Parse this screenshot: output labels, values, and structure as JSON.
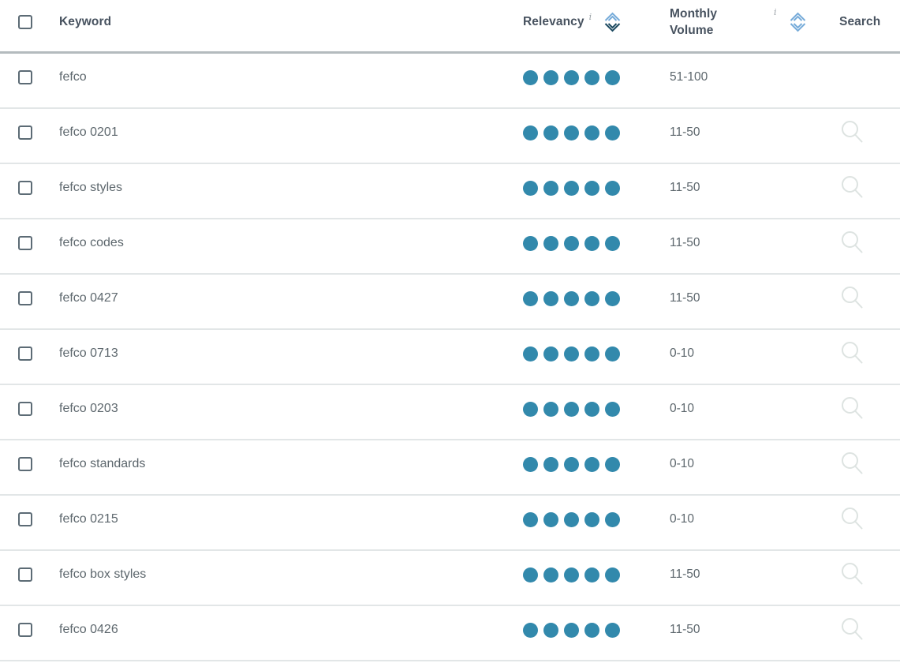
{
  "header": {
    "keyword": "Keyword",
    "relevancy": "Relevancy",
    "monthly_volume": "Monthly Volume",
    "search": "Search",
    "info_marker": "i",
    "select_all_checked": false
  },
  "sort": {
    "relevancy": "desc",
    "monthly_volume": "none"
  },
  "relevancy_max": 5,
  "rows": [
    {
      "keyword": "fefco",
      "relevancy": 5,
      "monthly_volume": "51-100",
      "search_icon": false,
      "checked": false
    },
    {
      "keyword": "fefco 0201",
      "relevancy": 5,
      "monthly_volume": "11-50",
      "search_icon": true,
      "checked": false
    },
    {
      "keyword": "fefco styles",
      "relevancy": 5,
      "monthly_volume": "11-50",
      "search_icon": true,
      "checked": false
    },
    {
      "keyword": "fefco codes",
      "relevancy": 5,
      "monthly_volume": "11-50",
      "search_icon": true,
      "checked": false
    },
    {
      "keyword": "fefco 0427",
      "relevancy": 5,
      "monthly_volume": "11-50",
      "search_icon": true,
      "checked": false
    },
    {
      "keyword": "fefco 0713",
      "relevancy": 5,
      "monthly_volume": "0-10",
      "search_icon": true,
      "checked": false
    },
    {
      "keyword": "fefco 0203",
      "relevancy": 5,
      "monthly_volume": "0-10",
      "search_icon": true,
      "checked": false
    },
    {
      "keyword": "fefco standards",
      "relevancy": 5,
      "monthly_volume": "0-10",
      "search_icon": true,
      "checked": false
    },
    {
      "keyword": "fefco 0215",
      "relevancy": 5,
      "monthly_volume": "0-10",
      "search_icon": true,
      "checked": false
    },
    {
      "keyword": "fefco box styles",
      "relevancy": 5,
      "monthly_volume": "11-50",
      "search_icon": true,
      "checked": false
    },
    {
      "keyword": "fefco 0426",
      "relevancy": 5,
      "monthly_volume": "11-50",
      "search_icon": true,
      "checked": false
    }
  ],
  "colors": {
    "relevancy_dot": "#3289ac",
    "sort_active": "#1b4960",
    "sort_inactive": "#76abd9",
    "header_text": "#47525f",
    "row_text": "#5d676d",
    "row_divider": "#e2e6e7",
    "header_divider": "#b4bbbe",
    "checkbox_border": "#5c6b75",
    "search_icon": "#dde3e1",
    "info_icon": "#9aa1a6"
  }
}
